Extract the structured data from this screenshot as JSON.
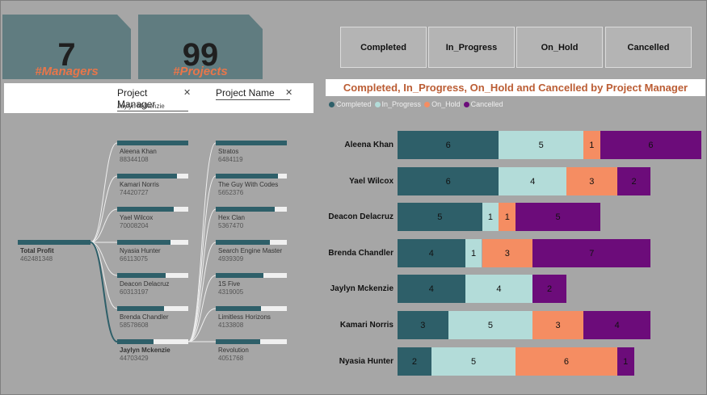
{
  "kpis": [
    {
      "value": "7",
      "label": "#Managers"
    },
    {
      "value": "99",
      "label": "#Projects"
    }
  ],
  "status_buttons": [
    "Completed",
    "In_Progress",
    "On_Hold",
    "Cancelled"
  ],
  "slicers": {
    "project_manager": {
      "label": "Project Manager",
      "selected": "Jaylyn Mckenzie"
    },
    "project_name": {
      "label": "Project Name"
    }
  },
  "tree": {
    "root": {
      "label": "Total Profit",
      "value": "462481348"
    },
    "managers": [
      {
        "name": "Aleena Khan",
        "value": "88344108",
        "fill": 1.0
      },
      {
        "name": "Kamari Norris",
        "value": "74420727",
        "fill": 0.84
      },
      {
        "name": "Yael Wilcox",
        "value": "70008204",
        "fill": 0.79
      },
      {
        "name": "Nyasia Hunter",
        "value": "66113075",
        "fill": 0.75
      },
      {
        "name": "Deacon Delacruz",
        "value": "60313197",
        "fill": 0.68
      },
      {
        "name": "Brenda Chandler",
        "value": "58578608",
        "fill": 0.66
      },
      {
        "name": "Jaylyn Mckenzie",
        "value": "44703429",
        "fill": 0.51,
        "selected": true
      }
    ],
    "projects": [
      {
        "name": "Stratos",
        "value": "6484119",
        "fill": 1.0
      },
      {
        "name": "The Guy With Codes",
        "value": "5652376",
        "fill": 0.87
      },
      {
        "name": "Hex Clan",
        "value": "5367470",
        "fill": 0.83
      },
      {
        "name": "Search Engine Master",
        "value": "4939309",
        "fill": 0.76
      },
      {
        "name": "1S Five",
        "value": "4319005",
        "fill": 0.67
      },
      {
        "name": "Limitless Horizons",
        "value": "4133808",
        "fill": 0.64
      },
      {
        "name": "Revolution",
        "value": "4051768",
        "fill": 0.62
      }
    ]
  },
  "chart_data": {
    "type": "bar",
    "orientation": "horizontal",
    "stacked": true,
    "title": "Completed, In_Progress, On_Hold and Cancelled by Project Manager",
    "categories": [
      "Aleena Khan",
      "Yael Wilcox",
      "Deacon Delacruz",
      "Brenda Chandler",
      "Jaylyn Mckenzie",
      "Kamari Norris",
      "Nyasia Hunter"
    ],
    "series": [
      {
        "name": "Completed",
        "color": "#2e5f69",
        "values": [
          6,
          6,
          5,
          4,
          4,
          3,
          2
        ]
      },
      {
        "name": "In_Progress",
        "color": "#b3dcd9",
        "values": [
          5,
          4,
          1,
          1,
          4,
          5,
          5
        ]
      },
      {
        "name": "On_Hold",
        "color": "#f58d62",
        "values": [
          1,
          3,
          1,
          3,
          0,
          3,
          6
        ]
      },
      {
        "name": "Cancelled",
        "color": "#6c0c7a",
        "values": [
          6,
          2,
          5,
          7,
          2,
          4,
          1
        ]
      }
    ],
    "legend_position": "top-left",
    "grid": false
  }
}
